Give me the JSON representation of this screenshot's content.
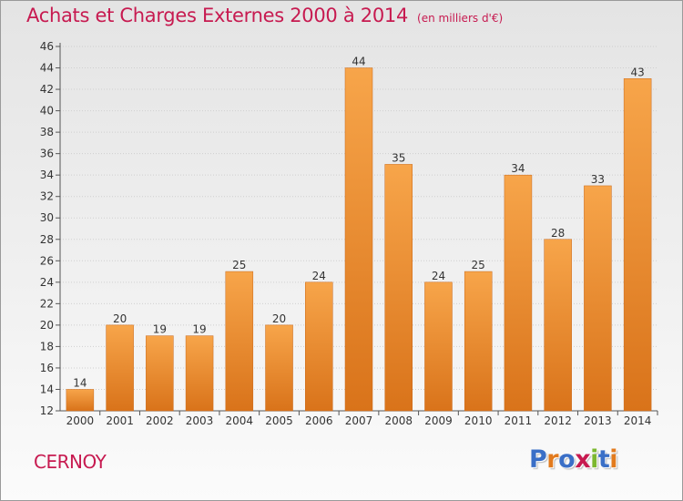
{
  "header": {
    "title": "Achats et Charges Externes 2000 à 2014",
    "unit": "(en milliers d'€)"
  },
  "footer": {
    "city": "CERNOY",
    "logo_text": "Proxiti",
    "logo_colors": [
      "#3a6fc7",
      "#e27b1e",
      "#3a6fc7",
      "#c71a50",
      "#7cb82f",
      "#3a6fc7",
      "#e27b1e"
    ]
  },
  "colors": {
    "title": "#c71a50",
    "bar_light": "#f7a54a",
    "bar_dark": "#d9731a",
    "axis": "#555555"
  },
  "chart_data": {
    "type": "bar",
    "categories": [
      "2000",
      "2001",
      "2002",
      "2003",
      "2004",
      "2005",
      "2006",
      "2007",
      "2008",
      "2009",
      "2010",
      "2011",
      "2012",
      "2013",
      "2014"
    ],
    "values": [
      14,
      20,
      19,
      19,
      25,
      20,
      24,
      44,
      35,
      24,
      25,
      34,
      28,
      33,
      43
    ],
    "ylim": [
      12,
      46
    ],
    "ytick_step": 2,
    "grid": true,
    "legend": "none"
  }
}
